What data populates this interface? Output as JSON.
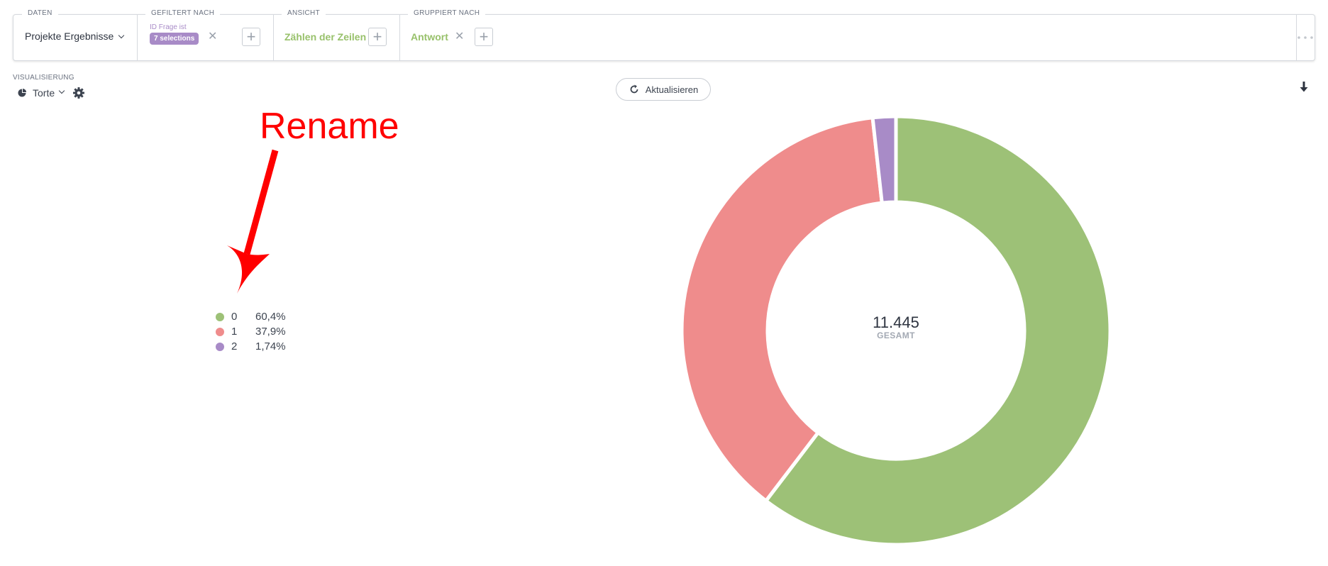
{
  "query_builder": {
    "data": {
      "label": "DATEN",
      "value": "Projekte Ergebnisse"
    },
    "filter": {
      "label": "GEFILTERT NACH",
      "field": "ID Frage ist",
      "badge": "7 selections"
    },
    "view": {
      "label": "ANSICHT",
      "value": "Zählen der Zeilen"
    },
    "group": {
      "label": "GRUPPIERT NACH",
      "value": "Antwort"
    }
  },
  "visualization": {
    "label": "VISUALISIERUNG",
    "type": "Torte"
  },
  "refresh": {
    "label": "Aktualisieren"
  },
  "annotation": {
    "text": "Rename"
  },
  "chart_data": {
    "type": "pie",
    "donut": true,
    "total_value": "11.445",
    "total_label": "GESAMT",
    "slices": [
      {
        "name": "0",
        "percent_label": "60,4%",
        "value": 60.4,
        "color": "#9dc177"
      },
      {
        "name": "1",
        "percent_label": "37,9%",
        "value": 37.9,
        "color": "#ef8c8c"
      },
      {
        "name": "2",
        "percent_label": "1,74%",
        "value": 1.74,
        "color": "#a88bc7"
      }
    ]
  }
}
